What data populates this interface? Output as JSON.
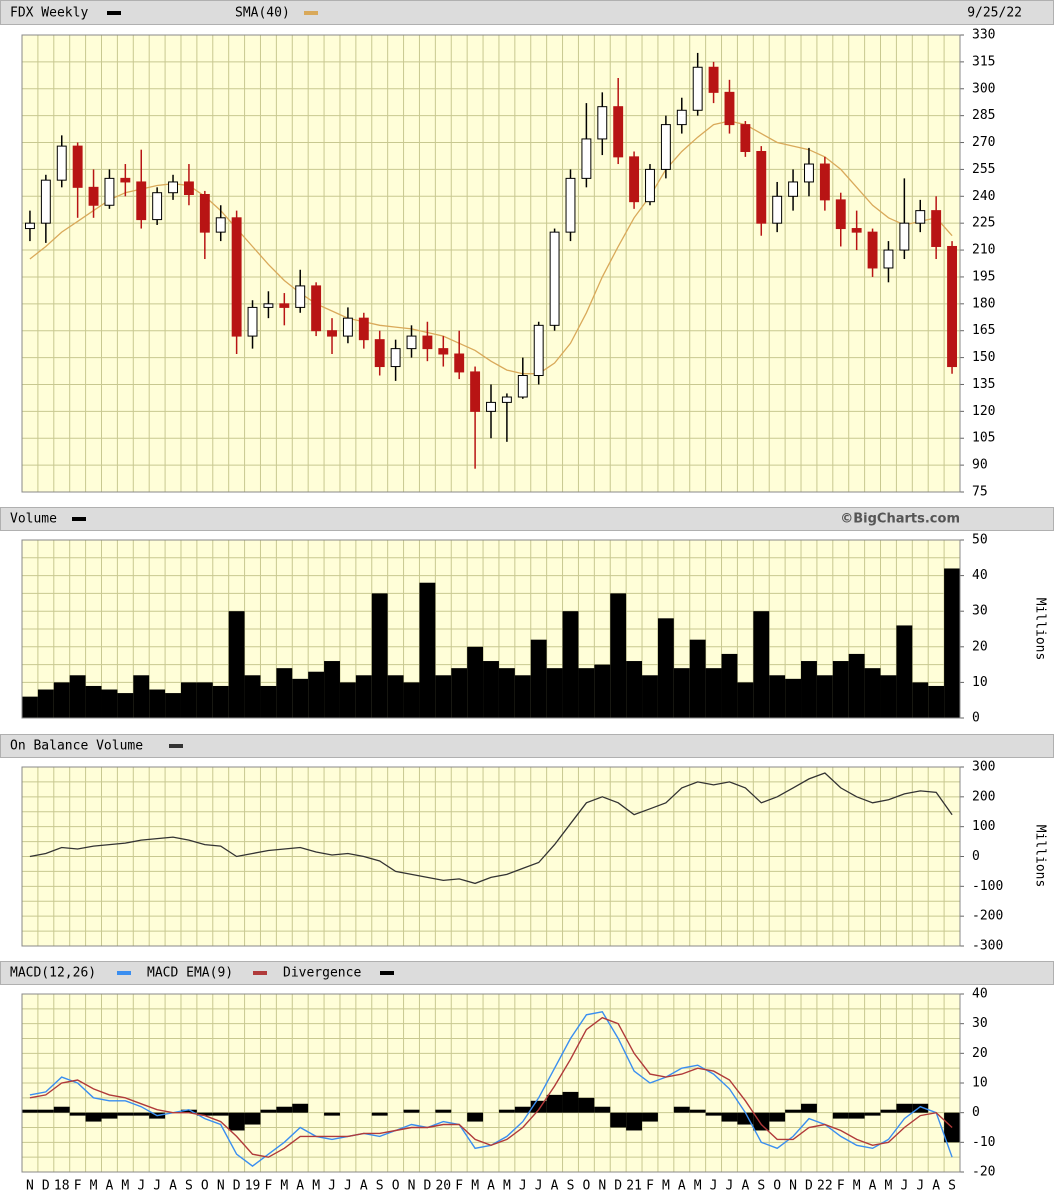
{
  "chart_data": [
    {
      "type": "candlestick",
      "title": "FDX Weekly",
      "date": "9/25/22",
      "up_color": "#000000",
      "down_color": "#b81414",
      "open": [
        222,
        225,
        249,
        268,
        245,
        235,
        250,
        248,
        227,
        242,
        248,
        241,
        220,
        228,
        162,
        178,
        180,
        178,
        190,
        165,
        162,
        172,
        160,
        145,
        155,
        162,
        155,
        152,
        142,
        120,
        125,
        128,
        140,
        168,
        220,
        250,
        272,
        290,
        262,
        237,
        255,
        280,
        288,
        312,
        298,
        280,
        265,
        225,
        240,
        248,
        258,
        238,
        222,
        220,
        200,
        210,
        225,
        232,
        212
      ],
      "high": [
        232,
        252,
        274,
        270,
        255,
        255,
        258,
        266,
        245,
        252,
        258,
        243,
        235,
        232,
        182,
        187,
        186,
        199,
        192,
        172,
        178,
        175,
        165,
        160,
        168,
        170,
        162,
        165,
        145,
        135,
        130,
        150,
        170,
        222,
        255,
        292,
        298,
        306,
        265,
        258,
        285,
        295,
        320,
        315,
        305,
        282,
        268,
        248,
        255,
        267,
        262,
        242,
        232,
        222,
        215,
        250,
        238,
        240,
        215
      ],
      "low": [
        215,
        214,
        245,
        228,
        228,
        233,
        240,
        222,
        224,
        238,
        235,
        205,
        215,
        152,
        155,
        172,
        168,
        175,
        162,
        152,
        158,
        155,
        140,
        137,
        150,
        148,
        145,
        138,
        88,
        105,
        103,
        127,
        135,
        165,
        215,
        245,
        263,
        258,
        233,
        235,
        250,
        275,
        285,
        292,
        275,
        262,
        218,
        220,
        232,
        240,
        232,
        212,
        210,
        195,
        192,
        205,
        220,
        205,
        141
      ],
      "close": [
        225,
        249,
        268,
        245,
        235,
        250,
        248,
        227,
        242,
        248,
        241,
        220,
        228,
        162,
        178,
        180,
        178,
        190,
        165,
        162,
        172,
        160,
        145,
        155,
        162,
        155,
        152,
        142,
        120,
        125,
        128,
        140,
        168,
        220,
        250,
        272,
        290,
        262,
        237,
        255,
        280,
        288,
        312,
        298,
        280,
        265,
        225,
        240,
        248,
        258,
        238,
        222,
        220,
        200,
        210,
        225,
        232,
        212,
        145
      ],
      "overlays": [
        {
          "name": "SMA(40)",
          "color": "#d9a95a",
          "values": [
            205,
            212,
            220,
            226,
            232,
            238,
            242,
            244,
            246,
            247,
            246,
            240,
            232,
            222,
            212,
            202,
            193,
            186,
            180,
            176,
            172,
            170,
            168,
            167,
            166,
            164,
            162,
            158,
            154,
            148,
            143,
            141,
            141,
            147,
            158,
            175,
            195,
            212,
            228,
            240,
            255,
            265,
            273,
            280,
            282,
            280,
            275,
            270,
            268,
            266,
            262,
            255,
            245,
            235,
            228,
            224,
            226,
            228,
            218
          ]
        }
      ],
      "ylim": [
        75,
        330
      ],
      "yticks": [
        75,
        90,
        105,
        120,
        135,
        150,
        165,
        180,
        195,
        210,
        225,
        240,
        255,
        270,
        285,
        300,
        315,
        330
      ],
      "grid": true,
      "minor_grid": false
    },
    {
      "type": "bar",
      "title": "Volume",
      "credit": "©BigCharts.com",
      "axis_label": "Millions",
      "color": "#000000",
      "values": [
        6,
        8,
        10,
        12,
        9,
        8,
        7,
        12,
        8,
        7,
        10,
        10,
        9,
        30,
        12,
        9,
        14,
        11,
        13,
        16,
        10,
        12,
        35,
        12,
        10,
        38,
        12,
        14,
        20,
        16,
        14,
        12,
        22,
        14,
        30,
        14,
        15,
        35,
        16,
        12,
        28,
        14,
        22,
        14,
        18,
        10,
        30,
        12,
        11,
        16,
        12,
        16,
        18,
        14,
        12,
        26,
        10,
        9,
        42
      ],
      "ylim": [
        0,
        50
      ],
      "yticks": [
        0,
        10,
        20,
        30,
        40,
        50
      ],
      "grid": true,
      "minor_grid": true
    },
    {
      "type": "line",
      "title": "On Balance Volume",
      "axis_label": "Millions",
      "color": "#333333",
      "values": [
        0,
        10,
        30,
        25,
        35,
        40,
        45,
        55,
        60,
        65,
        55,
        40,
        35,
        0,
        10,
        20,
        25,
        30,
        15,
        5,
        10,
        0,
        -15,
        -50,
        -60,
        -70,
        -80,
        -75,
        -90,
        -70,
        -60,
        -40,
        -20,
        40,
        110,
        180,
        200,
        180,
        140,
        160,
        180,
        230,
        250,
        240,
        250,
        230,
        180,
        200,
        230,
        260,
        280,
        230,
        200,
        180,
        190,
        210,
        220,
        215,
        140
      ],
      "ylim": [
        -300,
        300
      ],
      "yticks": [
        -300,
        -200,
        -100,
        0,
        100,
        200,
        300
      ],
      "grid": true,
      "minor_grid": true
    },
    {
      "type": "macd",
      "categories": [
        "N",
        "D",
        "18",
        "F",
        "M",
        "A",
        "M",
        "J",
        "J",
        "A",
        "S",
        "O",
        "N",
        "D",
        "19",
        "F",
        "M",
        "A",
        "M",
        "J",
        "J",
        "A",
        "S",
        "O",
        "N",
        "D",
        "20",
        "F",
        "M",
        "A",
        "M",
        "J",
        "J",
        "A",
        "S",
        "O",
        "N",
        "D",
        "21",
        "F",
        "M",
        "A",
        "M",
        "J",
        "J",
        "A",
        "S",
        "O",
        "N",
        "D",
        "22",
        "F",
        "M",
        "A",
        "M",
        "J",
        "J",
        "A",
        "S"
      ],
      "series": [
        {
          "name": "MACD(12,26)",
          "color": "#3a8ef0",
          "mark": "line",
          "values": [
            6,
            7,
            12,
            10,
            5,
            4,
            4,
            2,
            -1,
            0,
            1,
            -2,
            -4,
            -14,
            -18,
            -14,
            -10,
            -5,
            -8,
            -9,
            -8,
            -7,
            -8,
            -6,
            -4,
            -5,
            -3,
            -4,
            -12,
            -11,
            -8,
            -3,
            5,
            15,
            25,
            33,
            34,
            25,
            14,
            10,
            12,
            15,
            16,
            13,
            8,
            0,
            -10,
            -12,
            -8,
            -2,
            -4,
            -8,
            -11,
            -12,
            -9,
            -2,
            2,
            0,
            -15
          ]
        },
        {
          "name": "MACD EMA(9)",
          "color": "#b03a3a",
          "mark": "line",
          "values": [
            5,
            6,
            10,
            11,
            8,
            6,
            5,
            3,
            1,
            0,
            0,
            -1,
            -3,
            -8,
            -14,
            -15,
            -12,
            -8,
            -8,
            -8,
            -8,
            -7,
            -7,
            -6,
            -5,
            -5,
            -4,
            -4,
            -9,
            -11,
            -9,
            -5,
            1,
            9,
            18,
            28,
            32,
            30,
            20,
            13,
            12,
            13,
            15,
            14,
            11,
            4,
            -4,
            -9,
            -9,
            -5,
            -4,
            -6,
            -9,
            -11,
            -10,
            -5,
            -1,
            0,
            -5
          ]
        },
        {
          "name": "Divergence",
          "color": "#000000",
          "mark": "bar",
          "values": [
            1,
            1,
            2,
            -1,
            -3,
            -2,
            -1,
            -1,
            -2,
            0,
            1,
            -1,
            -1,
            -6,
            -4,
            1,
            2,
            3,
            0,
            -1,
            0,
            0,
            -1,
            0,
            1,
            0,
            1,
            0,
            -3,
            0,
            1,
            2,
            4,
            6,
            7,
            5,
            2,
            -5,
            -6,
            -3,
            0,
            2,
            1,
            -1,
            -3,
            -4,
            -6,
            -3,
            1,
            3,
            0,
            -2,
            -2,
            -1,
            1,
            3,
            3,
            0,
            -10
          ]
        }
      ],
      "ylim": [
        -20,
        40
      ],
      "yticks": [
        -20,
        -10,
        0,
        10,
        20,
        30,
        40
      ],
      "grid": true,
      "minor_grid": true
    }
  ]
}
